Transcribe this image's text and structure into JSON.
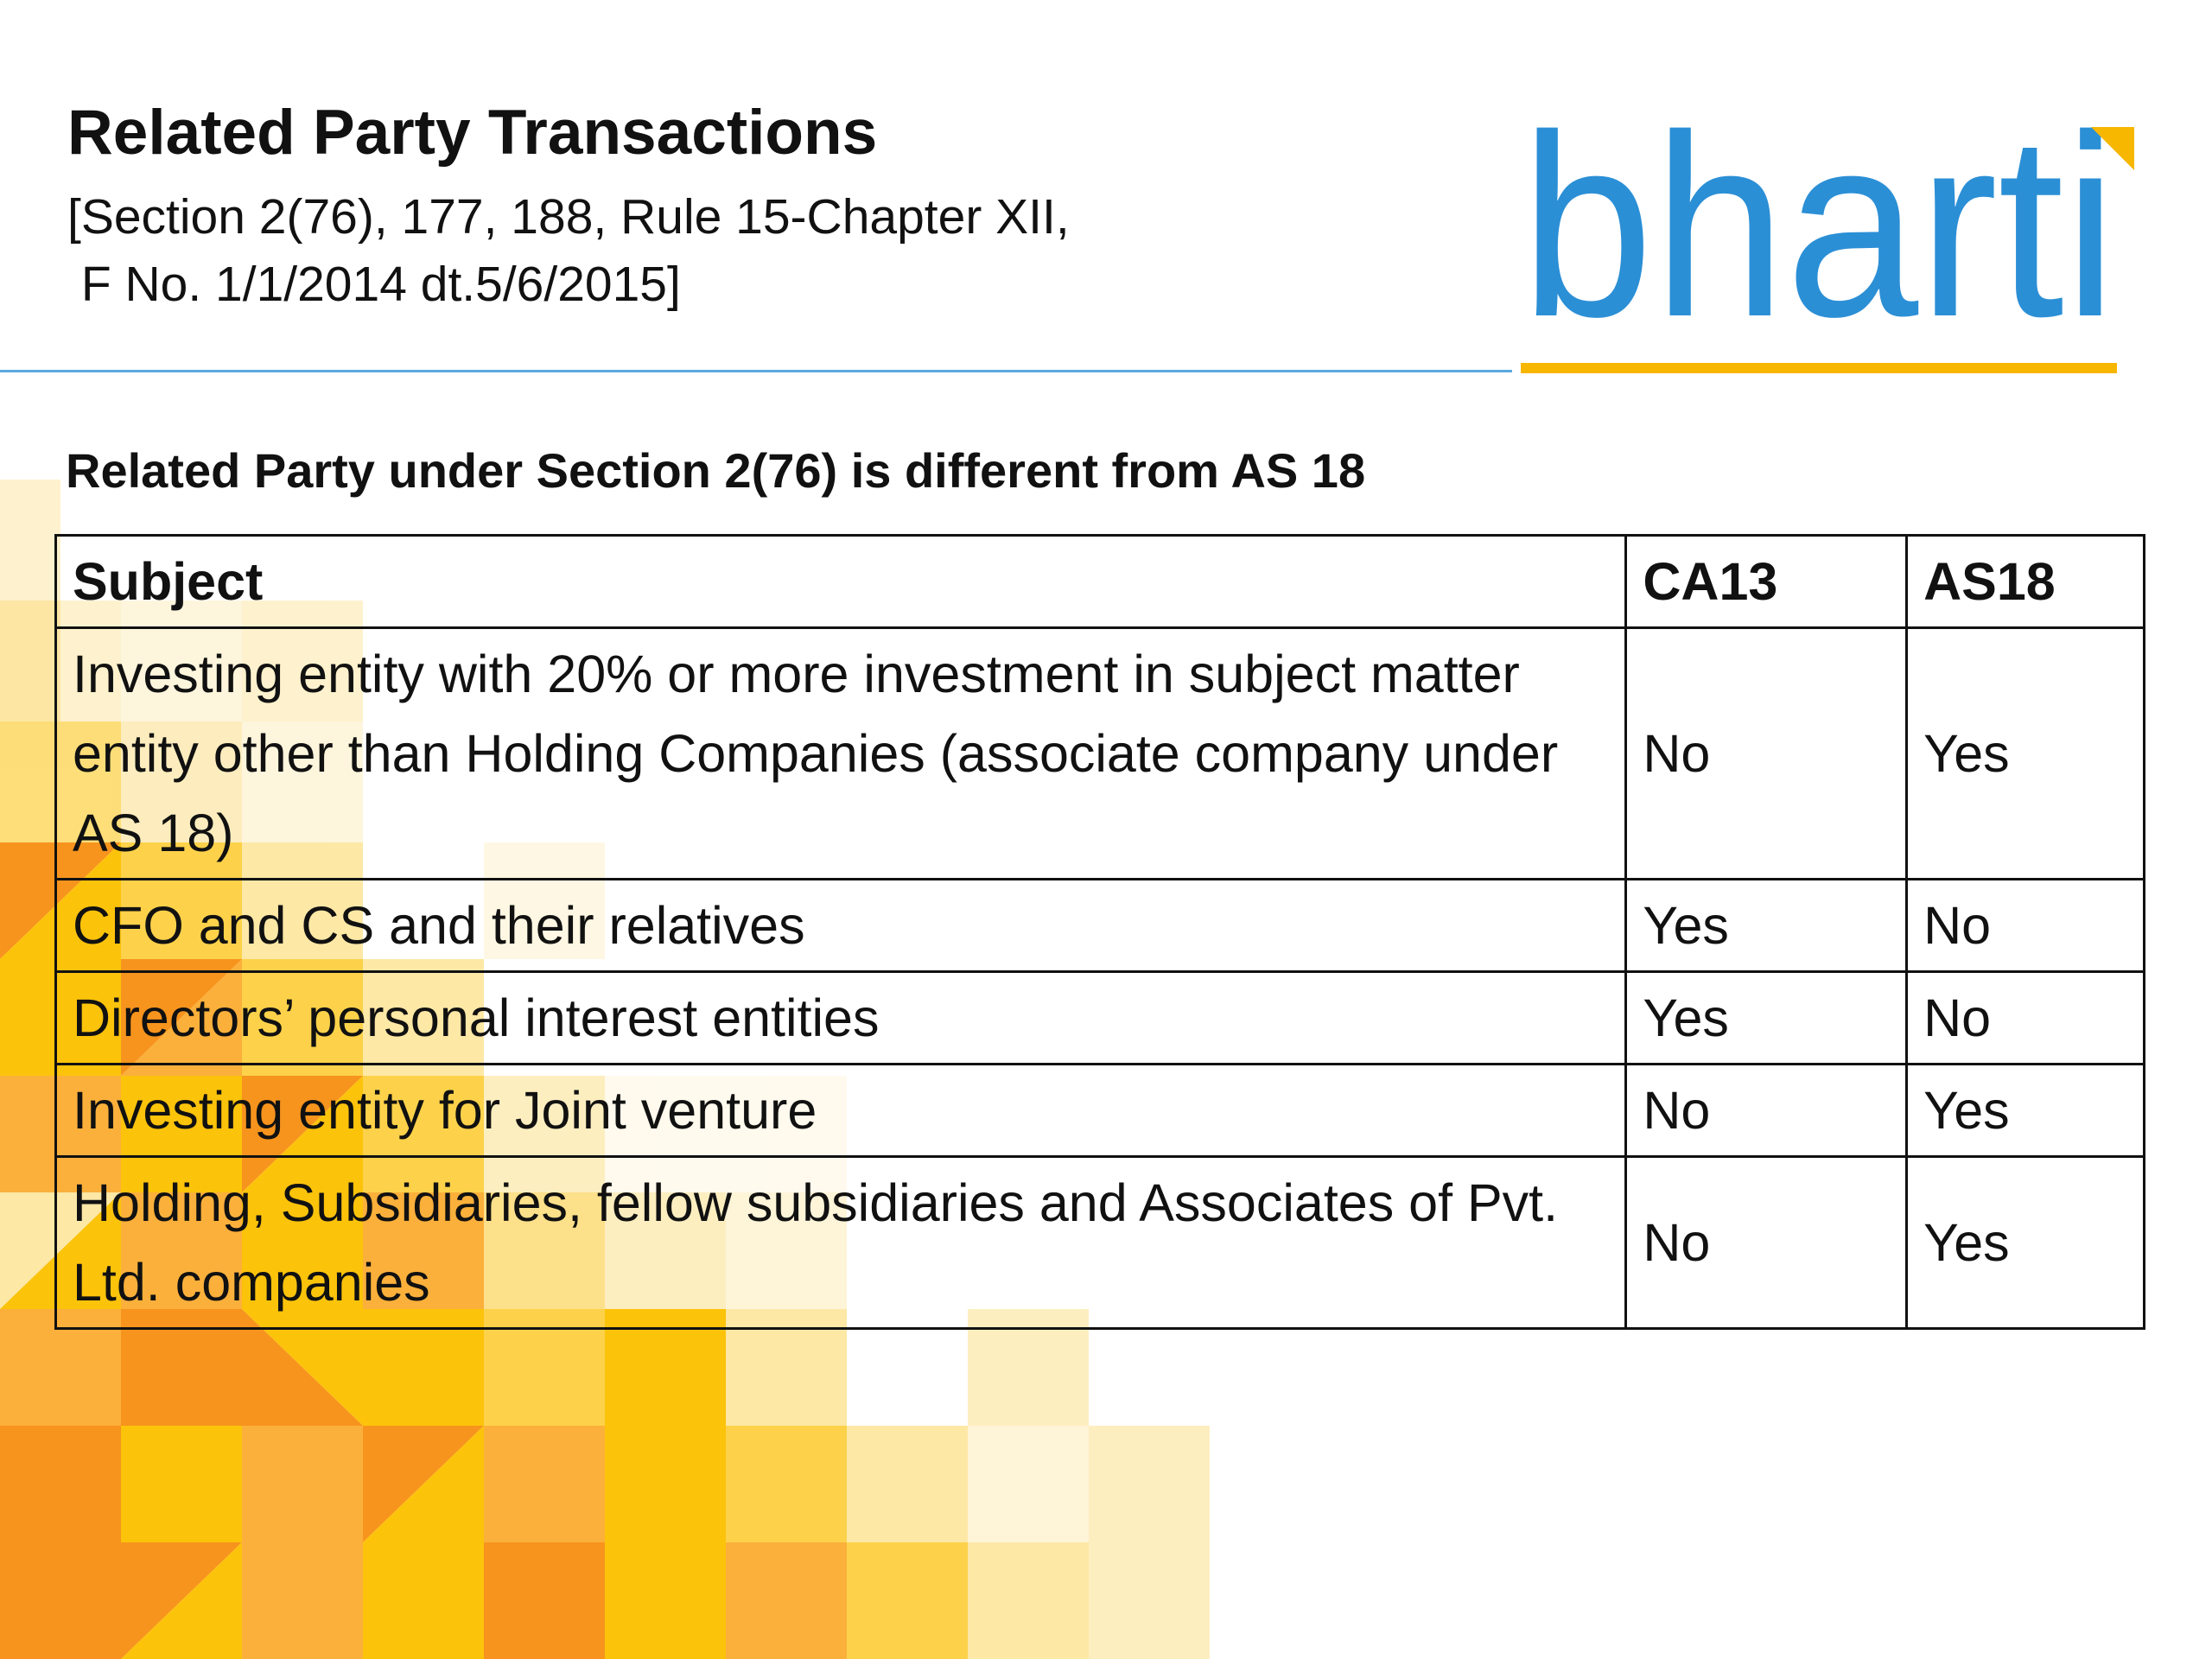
{
  "slide": {
    "title": "Related Party Transactions",
    "subtitle": "[Section 2(76), 177, 188, Rule 15-Chapter XII,\n F No. 1/1/2014 dt.5/6/2015]",
    "section_heading": "Related Party under Section 2(76) is different from AS 18"
  },
  "logo": {
    "text": "bharti",
    "color": "#2b8fd6",
    "accent": "#f7b600"
  },
  "table": {
    "headers": [
      "Subject",
      "CA13",
      "AS18"
    ],
    "rows": [
      {
        "subject": "Investing entity with 20% or more investment in subject matter entity other than Holding Companies (associate company under AS 18)",
        "ca13": "No",
        "as18": "Yes"
      },
      {
        "subject": "CFO and CS and their relatives",
        "ca13": "Yes",
        "as18": "No"
      },
      {
        "subject": "Directors’ personal interest entities",
        "ca13": "Yes",
        "as18": "No"
      },
      {
        "subject": "Investing entity for Joint venture",
        "ca13": "No",
        "as18": "Yes"
      },
      {
        "subject": "Holding, Subsidiaries, fellow subsidiaries and Associates  of Pvt. Ltd. companies",
        "ca13": "No",
        "as18": "Yes"
      }
    ]
  },
  "colors": {
    "rule": "#5aa9dd",
    "mosaic_orange": "#f7941d",
    "mosaic_yellow": "#fcc30b",
    "mosaic_pale": "#fde8a6"
  }
}
